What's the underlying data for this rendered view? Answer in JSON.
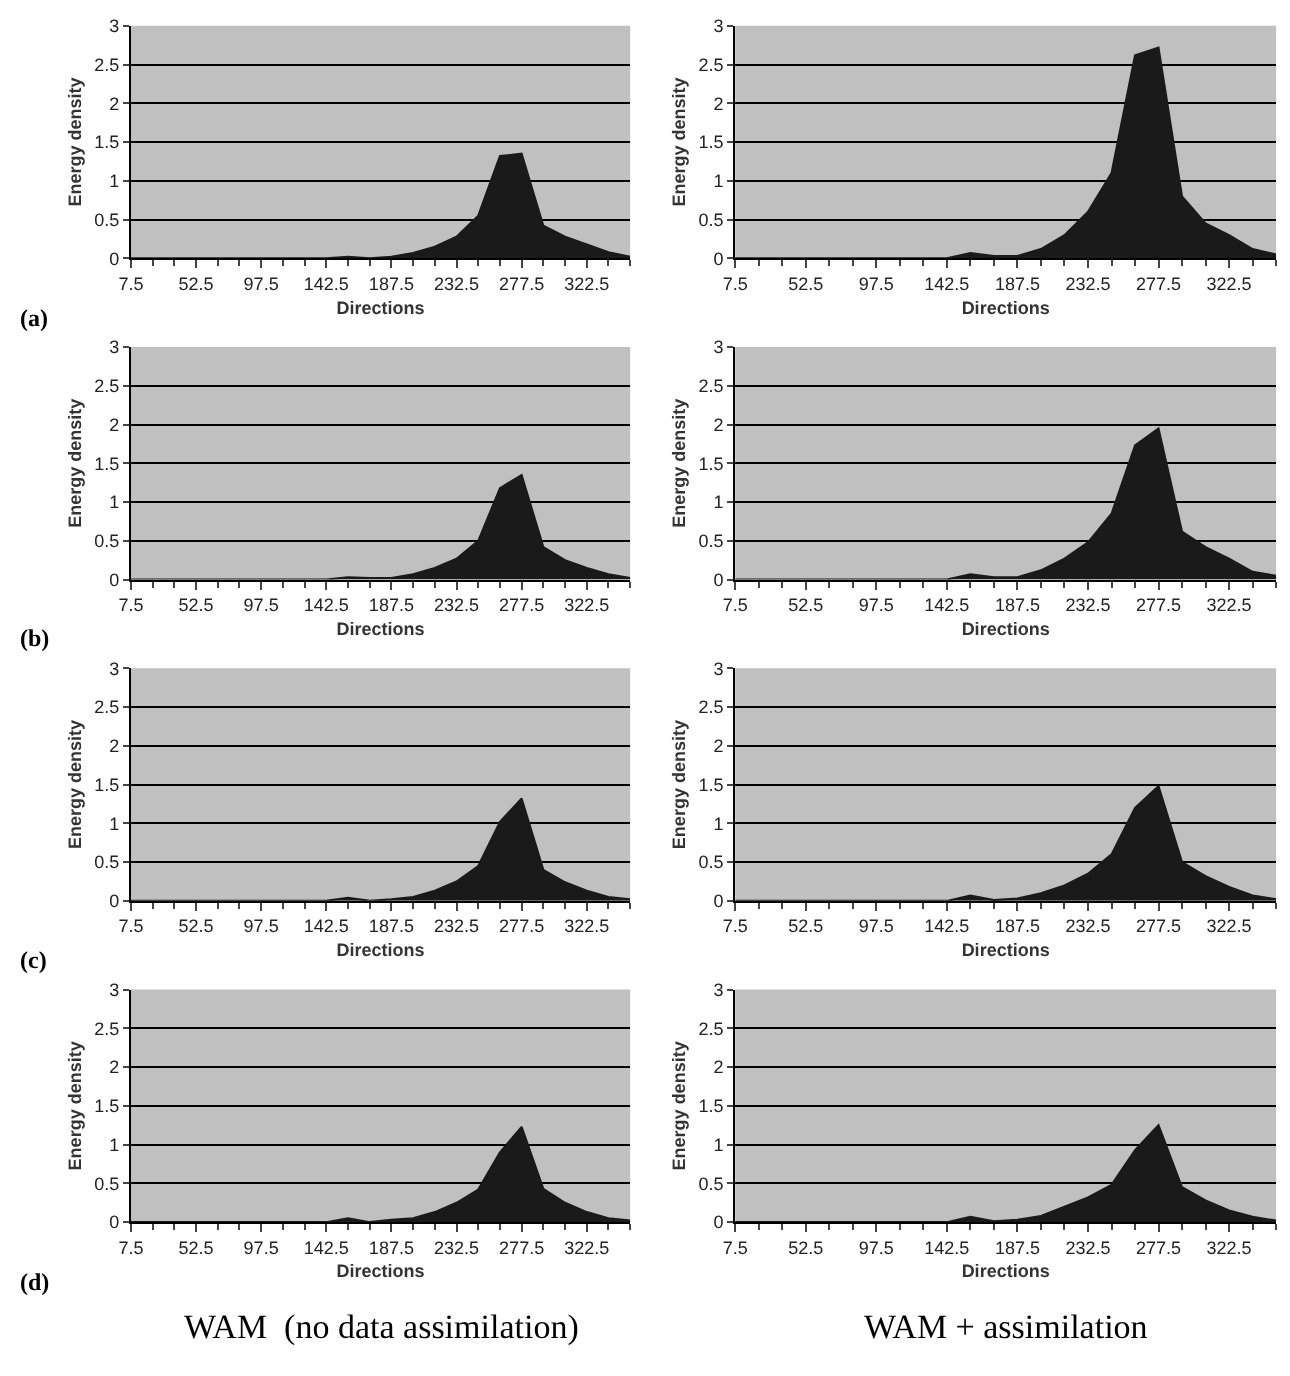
{
  "chart_data": [
    {
      "type": "area",
      "categories": [
        "7.5",
        null,
        null,
        "52.5",
        null,
        null,
        "97.5",
        null,
        null,
        "142.5",
        null,
        null,
        "187.5",
        null,
        null,
        "232.5",
        null,
        null,
        "277.5",
        null,
        null,
        "322.5",
        null,
        null
      ],
      "values": [
        0,
        0,
        0,
        0,
        0,
        0,
        0,
        0,
        0,
        0,
        0.02,
        0,
        0.02,
        0.07,
        0.15,
        0.28,
        0.55,
        1.32,
        1.35,
        0.42,
        0.28,
        0.18,
        0.08,
        0.02
      ],
      "color": "#1a1a1a",
      "ylim": [
        0,
        3
      ],
      "yticks": [
        0,
        0.5,
        1,
        1.5,
        2,
        2.5,
        3
      ],
      "xlabel": "Directions",
      "ylabel": "Energy density",
      "grid": "y",
      "annotations": [
        "(a)"
      ]
    },
    {
      "type": "area",
      "categories": [
        "7.5",
        null,
        null,
        "52.5",
        null,
        null,
        "97.5",
        null,
        null,
        "142.5",
        null,
        null,
        "187.5",
        null,
        null,
        "232.5",
        null,
        null,
        "277.5",
        null,
        null,
        "322.5",
        null,
        null
      ],
      "values": [
        0,
        0,
        0,
        0,
        0,
        0,
        0,
        0,
        0,
        0,
        0.07,
        0.03,
        0.03,
        0.12,
        0.3,
        0.6,
        1.1,
        2.62,
        2.72,
        0.8,
        0.45,
        0.3,
        0.12,
        0.05
      ],
      "color": "#1a1a1a",
      "ylim": [
        0,
        3
      ],
      "yticks": [
        0,
        0.5,
        1,
        1.5,
        2,
        2.5,
        3
      ],
      "xlabel": "Directions",
      "ylabel": "Energy density",
      "grid": "y"
    },
    {
      "type": "area",
      "categories": [
        "7.5",
        null,
        null,
        "52.5",
        null,
        null,
        "97.5",
        null,
        null,
        "142.5",
        null,
        null,
        "187.5",
        null,
        null,
        "232.5",
        null,
        null,
        "277.5",
        null,
        null,
        "322.5",
        null,
        null
      ],
      "values": [
        0,
        0,
        0,
        0,
        0,
        0,
        0,
        0,
        0,
        0,
        0.03,
        0.02,
        0.02,
        0.07,
        0.15,
        0.27,
        0.5,
        1.18,
        1.35,
        0.42,
        0.25,
        0.15,
        0.07,
        0.02
      ],
      "color": "#1a1a1a",
      "ylim": [
        0,
        3
      ],
      "yticks": [
        0,
        0.5,
        1,
        1.5,
        2,
        2.5,
        3
      ],
      "xlabel": "Directions",
      "ylabel": "Energy density",
      "grid": "y",
      "annotations": [
        "(b)"
      ]
    },
    {
      "type": "area",
      "categories": [
        "7.5",
        null,
        null,
        "52.5",
        null,
        null,
        "97.5",
        null,
        null,
        "142.5",
        null,
        null,
        "187.5",
        null,
        null,
        "232.5",
        null,
        null,
        "277.5",
        null,
        null,
        "322.5",
        null,
        null
      ],
      "values": [
        0,
        0,
        0,
        0,
        0,
        0,
        0,
        0,
        0,
        0,
        0.07,
        0.03,
        0.03,
        0.12,
        0.27,
        0.48,
        0.85,
        1.73,
        1.95,
        0.62,
        0.42,
        0.27,
        0.1,
        0.05
      ],
      "color": "#1a1a1a",
      "ylim": [
        0,
        3
      ],
      "yticks": [
        0,
        0.5,
        1,
        1.5,
        2,
        2.5,
        3
      ],
      "xlabel": "Directions",
      "ylabel": "Energy density",
      "grid": "y"
    },
    {
      "type": "area",
      "categories": [
        "7.5",
        null,
        null,
        "52.5",
        null,
        null,
        "97.5",
        null,
        null,
        "142.5",
        null,
        null,
        "187.5",
        null,
        null,
        "232.5",
        null,
        null,
        "277.5",
        null,
        null,
        "322.5",
        null,
        null
      ],
      "values": [
        0,
        0,
        0,
        0,
        0,
        0,
        0,
        0,
        0,
        0,
        0.04,
        0,
        0.02,
        0.05,
        0.13,
        0.25,
        0.45,
        1.02,
        1.32,
        0.4,
        0.24,
        0.13,
        0.05,
        0.02
      ],
      "color": "#1a1a1a",
      "ylim": [
        0,
        3
      ],
      "yticks": [
        0,
        0.5,
        1,
        1.5,
        2,
        2.5,
        3
      ],
      "xlabel": "Directions",
      "ylabel": "Energy density",
      "grid": "y",
      "annotations": [
        "(c)"
      ]
    },
    {
      "type": "area",
      "categories": [
        "7.5",
        null,
        null,
        "52.5",
        null,
        null,
        "97.5",
        null,
        null,
        "142.5",
        null,
        null,
        "187.5",
        null,
        null,
        "232.5",
        null,
        null,
        "277.5",
        null,
        null,
        "322.5",
        null,
        null
      ],
      "values": [
        0,
        0,
        0,
        0,
        0,
        0,
        0,
        0,
        0,
        0,
        0.07,
        0.01,
        0.03,
        0.1,
        0.2,
        0.35,
        0.6,
        1.2,
        1.48,
        0.5,
        0.32,
        0.18,
        0.07,
        0.02
      ],
      "color": "#1a1a1a",
      "ylim": [
        0,
        3
      ],
      "yticks": [
        0,
        0.5,
        1,
        1.5,
        2,
        2.5,
        3
      ],
      "xlabel": "Directions",
      "ylabel": "Energy density",
      "grid": "y"
    },
    {
      "type": "area",
      "categories": [
        "7.5",
        null,
        null,
        "52.5",
        null,
        null,
        "97.5",
        null,
        null,
        "142.5",
        null,
        null,
        "187.5",
        null,
        null,
        "232.5",
        null,
        null,
        "277.5",
        null,
        null,
        "322.5",
        null,
        null
      ],
      "values": [
        0,
        0,
        0,
        0,
        0,
        0,
        0,
        0,
        0,
        0,
        0.05,
        0,
        0.03,
        0.05,
        0.13,
        0.25,
        0.42,
        0.9,
        1.23,
        0.43,
        0.25,
        0.13,
        0.05,
        0.02
      ],
      "color": "#1a1a1a",
      "ylim": [
        0,
        3
      ],
      "yticks": [
        0,
        0.5,
        1,
        1.5,
        2,
        2.5,
        3
      ],
      "xlabel": "Directions",
      "ylabel": "Energy density",
      "grid": "y",
      "annotations": [
        "(d)",
        "WAM  (no data assimilation)"
      ]
    },
    {
      "type": "area",
      "categories": [
        "7.5",
        null,
        null,
        "52.5",
        null,
        null,
        "97.5",
        null,
        null,
        "142.5",
        null,
        null,
        "187.5",
        null,
        null,
        "232.5",
        null,
        null,
        "277.5",
        null,
        null,
        "322.5",
        null,
        null
      ],
      "values": [
        0,
        0,
        0,
        0,
        0,
        0,
        0,
        0,
        0,
        0,
        0.07,
        0.01,
        0.03,
        0.08,
        0.2,
        0.32,
        0.48,
        0.93,
        1.25,
        0.45,
        0.28,
        0.15,
        0.07,
        0.02
      ],
      "color": "#1a1a1a",
      "ylim": [
        0,
        3
      ],
      "yticks": [
        0,
        0.5,
        1,
        1.5,
        2,
        2.5,
        3
      ],
      "xlabel": "Directions",
      "ylabel": "Energy density",
      "grid": "y",
      "annotations": [
        "WAM + assimilation"
      ]
    }
  ]
}
